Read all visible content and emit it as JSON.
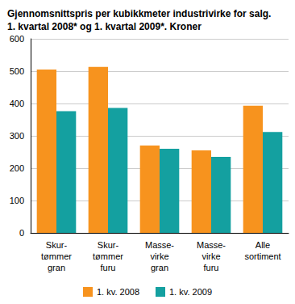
{
  "chart_data": {
    "type": "bar",
    "title": "Gjennomsnittspris per kubikkmeter industrivirke for salg.\n1. kvartal 2008* og 1. kvartal 2009*. Kroner",
    "categories": [
      "Skur-\ntømmer\ngran",
      "Skur-\ntømmer\nfuru",
      "Masse-\nvirke\ngran",
      "Masse-\nvirke\nfuru",
      "Alle\nsortiment"
    ],
    "series": [
      {
        "name": "1. kv. 2008",
        "color": "#f7931e",
        "values": [
          505,
          513,
          270,
          255,
          393
        ]
      },
      {
        "name": "1. kv. 2009",
        "color": "#14a0a0",
        "values": [
          376,
          386,
          260,
          235,
          312
        ]
      }
    ],
    "ylim": [
      0,
      600
    ],
    "yticks": [
      0,
      100,
      200,
      300,
      400,
      500,
      600
    ],
    "grid": true,
    "legend": "bottom"
  }
}
